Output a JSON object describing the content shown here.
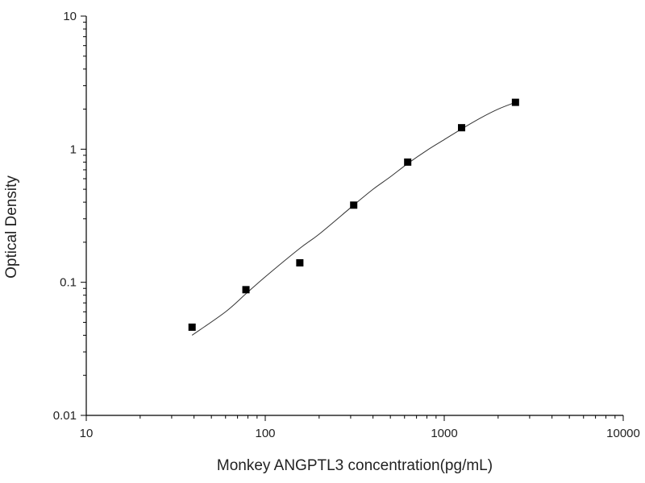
{
  "chart_data": {
    "type": "scatter",
    "xlabel": "Monkey ANGPTL3 concentration(pg/mL)",
    "ylabel": "Optical Density",
    "xscale": "log",
    "yscale": "log",
    "xlim": [
      10,
      10000
    ],
    "ylim": [
      0.01,
      10
    ],
    "x_ticks": [
      "10",
      "100",
      "1000",
      "10000"
    ],
    "y_ticks": [
      "0.01",
      "0.1",
      "1",
      "10"
    ],
    "grid": false,
    "legend": "none",
    "colors": {
      "axis": "#000000",
      "points": "#000000",
      "curve": "#333333"
    },
    "points": [
      {
        "x": 39,
        "y": 0.046
      },
      {
        "x": 78,
        "y": 0.088
      },
      {
        "x": 156,
        "y": 0.14
      },
      {
        "x": 312,
        "y": 0.38
      },
      {
        "x": 625,
        "y": 0.8
      },
      {
        "x": 1250,
        "y": 1.45
      },
      {
        "x": 2500,
        "y": 2.25
      }
    ],
    "fit_curve": {
      "x": [
        39,
        60,
        78,
        100,
        156,
        200,
        312,
        400,
        500,
        625,
        800,
        1000,
        1250,
        1600,
        2000,
        2500
      ],
      "y": [
        0.04,
        0.06,
        0.082,
        0.11,
        0.18,
        0.23,
        0.38,
        0.5,
        0.62,
        0.78,
        0.98,
        1.18,
        1.42,
        1.72,
        2.0,
        2.25
      ]
    }
  }
}
